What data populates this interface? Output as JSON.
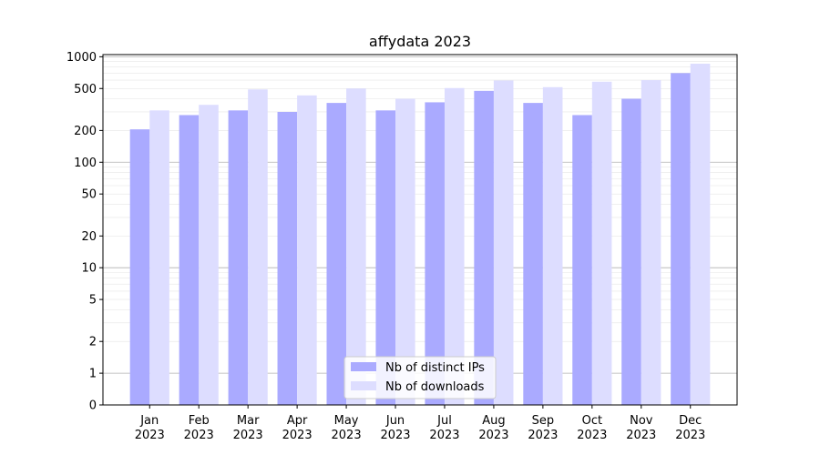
{
  "chart_data": {
    "type": "bar",
    "title": "affydata 2023",
    "xlabel": "",
    "ylabel": "",
    "y_scale": "symlog",
    "ylim": [
      0,
      1000
    ],
    "y_ticks": [
      "0",
      "1",
      "2",
      "5",
      "10",
      "20",
      "50",
      "100",
      "200",
      "500",
      "1000"
    ],
    "categories": [
      {
        "month": "Jan",
        "year": "2023"
      },
      {
        "month": "Feb",
        "year": "2023"
      },
      {
        "month": "Mar",
        "year": "2023"
      },
      {
        "month": "Apr",
        "year": "2023"
      },
      {
        "month": "May",
        "year": "2023"
      },
      {
        "month": "Jun",
        "year": "2023"
      },
      {
        "month": "Jul",
        "year": "2023"
      },
      {
        "month": "Aug",
        "year": "2023"
      },
      {
        "month": "Sep",
        "year": "2023"
      },
      {
        "month": "Oct",
        "year": "2023"
      },
      {
        "month": "Nov",
        "year": "2023"
      },
      {
        "month": "Dec",
        "year": "2023"
      }
    ],
    "series": [
      {
        "name": "Nb of distinct IPs",
        "color": "#aaaaff",
        "values": [
          205,
          280,
          310,
          300,
          365,
          310,
          370,
          475,
          365,
          280,
          400,
          700
        ]
      },
      {
        "name": "Nb of downloads",
        "color": "#ddddff",
        "values": [
          310,
          350,
          490,
          430,
          500,
          400,
          505,
          595,
          515,
          580,
          600,
          860
        ]
      }
    ],
    "legend_position": "lower center",
    "grid": true
  }
}
